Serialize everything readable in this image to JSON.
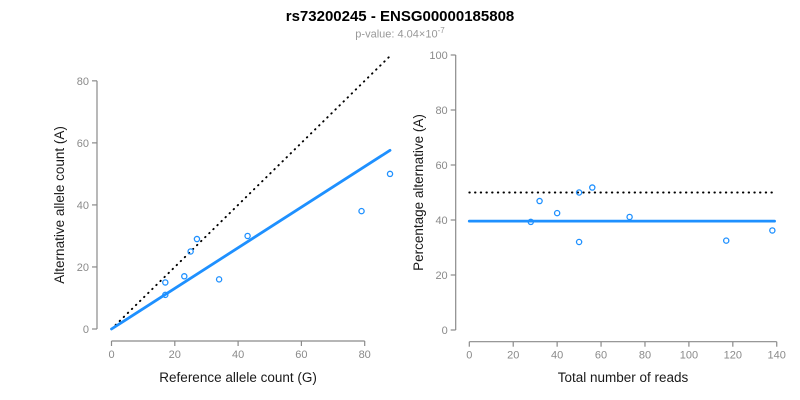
{
  "header": {
    "title": "rs73200245 - ENSG00000185808",
    "subtitle_prefix": "p-value: 4.04×10",
    "subtitle_exponent": "-7"
  },
  "colors": {
    "accent_blue": "#1E90FF",
    "line_black": "#000000",
    "axis_gray": "#8a8a8a",
    "tick_label_gray": "#8a8a8a",
    "axis_title_black": "#1a1a1a",
    "subtitle_gray": "#989898",
    "background": "#ffffff"
  },
  "chart_data": [
    {
      "type": "scatter",
      "panel": "left",
      "title": "",
      "xlabel": "Reference allele count (G)",
      "ylabel": "Alternative allele count (A)",
      "xlim": [
        0,
        88
      ],
      "ylim": [
        0,
        88
      ],
      "xticks": [
        0,
        20,
        40,
        60,
        80
      ],
      "yticks": [
        0,
        20,
        40,
        60,
        80
      ],
      "grid": false,
      "legend": "none",
      "marker": "open-circle",
      "points": [
        [
          17,
          15
        ],
        [
          17,
          11
        ],
        [
          23,
          17
        ],
        [
          25,
          25
        ],
        [
          27,
          29
        ],
        [
          34,
          16
        ],
        [
          43,
          30
        ],
        [
          79,
          38
        ],
        [
          88,
          50
        ]
      ],
      "lines": [
        {
          "name": "identity-line",
          "style": "dotted",
          "color": "#000000",
          "x1": 0,
          "y1": 0,
          "x2": 88,
          "y2": 88
        },
        {
          "name": "fit-line",
          "style": "solid",
          "color": "#1E90FF",
          "x1": 0,
          "y1": 0,
          "x2": 88,
          "y2": 57.6
        }
      ]
    },
    {
      "type": "scatter",
      "panel": "right",
      "title": "",
      "xlabel": "Total number of reads",
      "ylabel": "Percentage alternative (A)",
      "xlim": [
        0,
        140
      ],
      "ylim": [
        0,
        100
      ],
      "xticks": [
        0,
        20,
        40,
        60,
        80,
        100,
        120,
        140
      ],
      "yticks": [
        0,
        20,
        40,
        60,
        80,
        100
      ],
      "grid": false,
      "legend": "none",
      "marker": "open-circle",
      "points": [
        [
          32,
          46.9
        ],
        [
          28,
          39.3
        ],
        [
          40,
          42.5
        ],
        [
          50,
          50
        ],
        [
          56,
          51.8
        ],
        [
          50,
          32
        ],
        [
          73,
          41.1
        ],
        [
          117,
          32.5
        ],
        [
          138,
          36.2
        ]
      ],
      "lines": [
        {
          "name": "expected-50pct-line",
          "style": "dotted",
          "color": "#000000",
          "x1": 0,
          "y1": 50,
          "x2": 139,
          "y2": 50
        },
        {
          "name": "mean-pct-line",
          "style": "solid",
          "color": "#1E90FF",
          "x1": 0,
          "y1": 39.6,
          "x2": 139,
          "y2": 39.6
        }
      ]
    }
  ]
}
